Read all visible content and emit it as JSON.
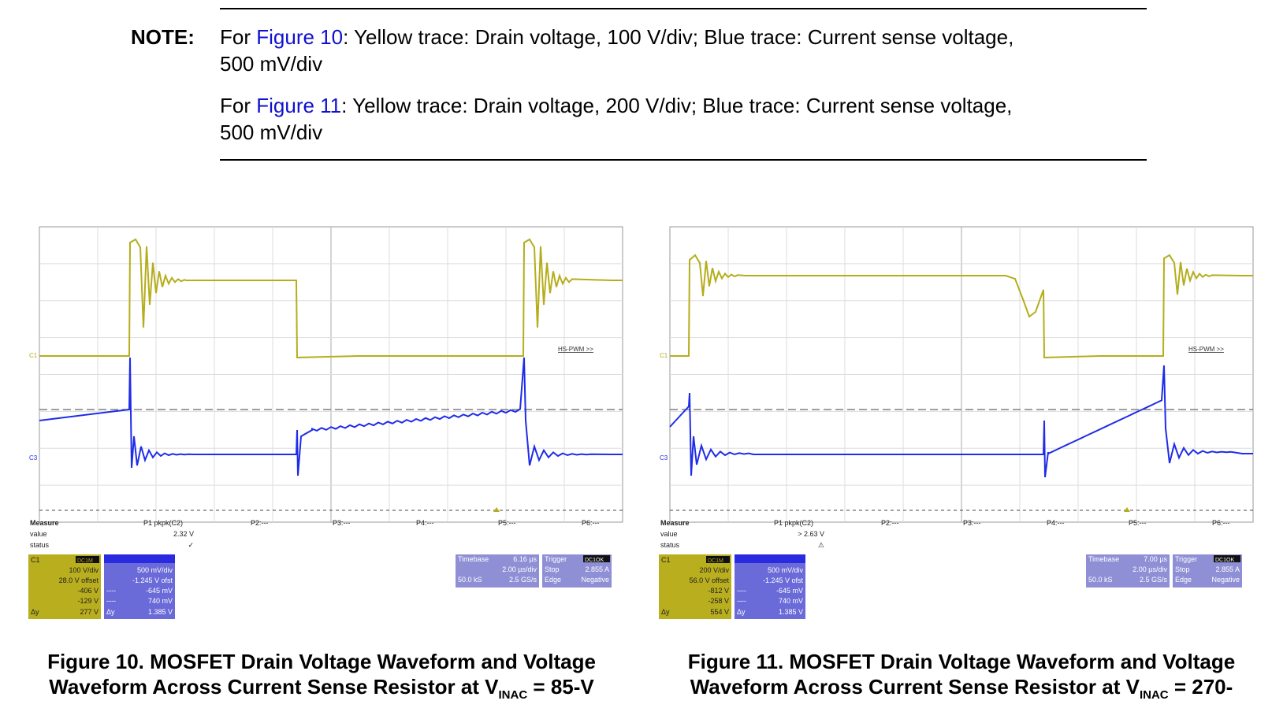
{
  "note": {
    "label": "NOTE:",
    "para1": {
      "pre": "For ",
      "link": "Figure 10",
      "post": ": Yellow trace: Drain voltage, 100 V/div; Blue trace: Current sense voltage,",
      "line2": "500 mV/div"
    },
    "para2": {
      "pre": "For ",
      "link": "Figure 11",
      "post": ": Yellow trace: Drain voltage, 200 V/div; Blue trace: Current sense voltage,",
      "line2": "500 mV/div"
    }
  },
  "colors": {
    "yellow_trace": "#b5ad1c",
    "blue_trace": "#1f2ce8",
    "grid": "#c8c8c8",
    "link": "#1010d0",
    "panel_yellow": "#b8ae1e",
    "panel_blue": "#3b3ae0",
    "panel_lavender": "#8f8fd6"
  },
  "figures": [
    {
      "caption_line1": "Figure 10. MOSFET Drain Voltage Waveform and Voltage",
      "caption_line2_pre": "Waveform Across Current Sense Resistor at V",
      "caption_sub": "INAC",
      "caption_line2_post": " = 85-V",
      "scope": {
        "c1_marker": "C1",
        "c3_marker": "C3",
        "hspwm_label": "HS-PWM >>",
        "measure_label": "Measure",
        "value_label": "value",
        "status_label": "status",
        "p1": "P1 pkpk(C2)",
        "p2": "P2:---",
        "p3": "P3:---",
        "p4": "P4:---",
        "p5": "P5:---",
        "p6": "P6:---",
        "p1_value": "2.32 V",
        "p1_status": "✓",
        "c1_box": {
          "title": "C1",
          "tag": "DC1M",
          "vdiv": "100 V/div",
          "offset": "28.0 V offset",
          "r1": "-406 V",
          "r2": "-129 V",
          "r3": "277 V",
          "dy": "Δy"
        },
        "c3_box": {
          "vdiv": "500 mV/div",
          "offset": "-1.245 V ofst",
          "r1": "-645 mV",
          "r2": "740 mV",
          "r3": "1.385 V",
          "dy": "Δy",
          "dash": "----"
        },
        "timebase": {
          "label": "Timebase",
          "val1": "6.16 µs",
          "val2": "2.00 µs/div",
          "val3": "50.0 kS",
          "val4": "2.5 GS/s"
        },
        "trigger": {
          "label": "Trigger",
          "tag": "DC1OK",
          "stop": "Stop",
          "stop_val": "2.855 A",
          "edge": "Edge",
          "edge_val": "Negative"
        }
      }
    },
    {
      "caption_line1": "Figure 11. MOSFET Drain Voltage Waveform and Voltage",
      "caption_line2_pre": "Waveform Across Current Sense Resistor at V",
      "caption_sub": "INAC",
      "caption_line2_post": " = 270-",
      "scope": {
        "c1_marker": "C1",
        "c3_marker": "C3",
        "hspwm_label": "HS-PWM >>",
        "measure_label": "Measure",
        "value_label": "value",
        "status_label": "status",
        "p1": "P1 pkpk(C2)",
        "p2": "P2:---",
        "p3": "P3:---",
        "p4": "P4:---",
        "p5": "P5:---",
        "p6": "P6:---",
        "p1_value": "> 2.63 V",
        "p1_status": "⚠",
        "c1_box": {
          "title": "C1",
          "tag": "DC1M",
          "vdiv": "200 V/div",
          "offset": "56.0 V offset",
          "r1": "-812 V",
          "r2": "-258 V",
          "r3": "554 V",
          "dy": "Δy"
        },
        "c3_box": {
          "vdiv": "500 mV/div",
          "offset": "-1.245 V ofst",
          "r1": "-645 mV",
          "r2": "740 mV",
          "r3": "1.385 V",
          "dy": "Δy",
          "dash": "----"
        },
        "timebase": {
          "label": "Timebase",
          "val1": "7.00 µs",
          "val2": "2.00 µs/div",
          "val3": "50.0 kS",
          "val4": "2.5 GS/s"
        },
        "trigger": {
          "label": "Trigger",
          "tag": "DC1OK",
          "stop": "Stop",
          "stop_val": "2.855 A",
          "edge": "Edge",
          "edge_val": "Negative"
        }
      }
    }
  ]
}
